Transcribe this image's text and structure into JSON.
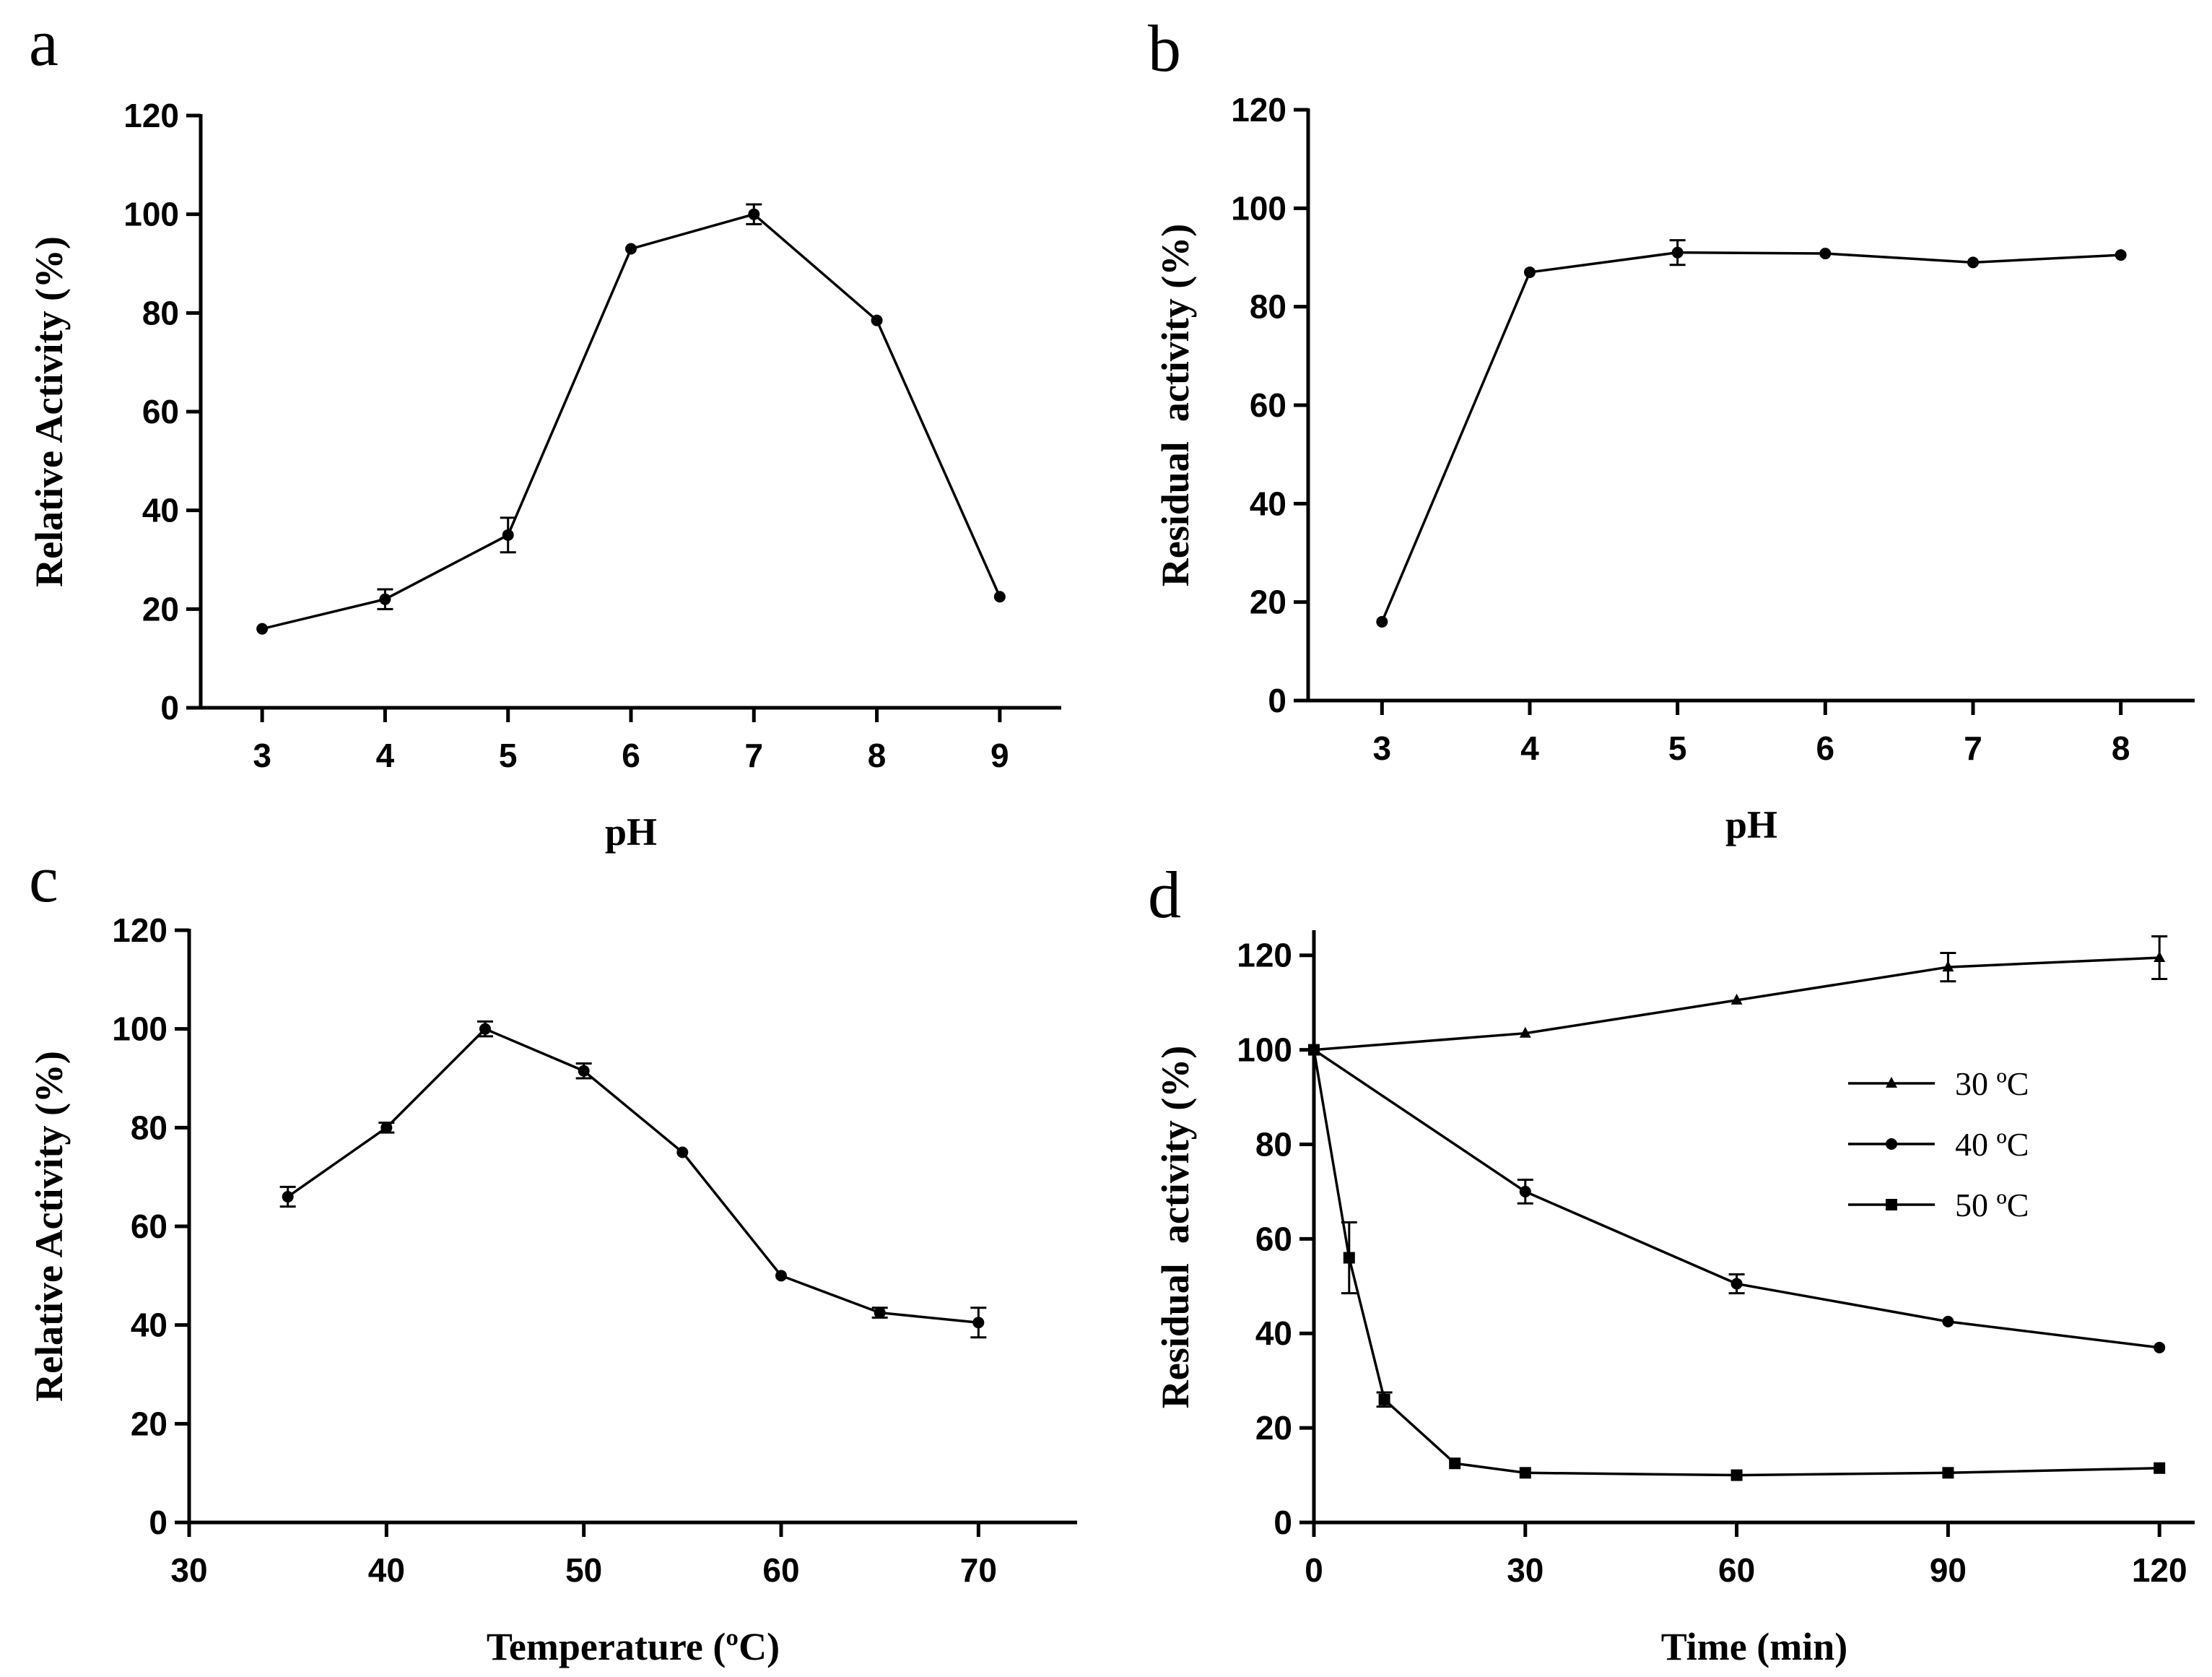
{
  "chart_data": [
    {
      "panel": "a",
      "type": "line",
      "xlabel": "pH",
      "ylabel": "Relative Activity (%)",
      "xlim": [
        2.5,
        9.5
      ],
      "ylim": [
        0,
        120
      ],
      "xticks": [
        3,
        4,
        5,
        6,
        7,
        8,
        9
      ],
      "yticks": [
        0,
        20,
        40,
        60,
        80,
        100,
        120
      ],
      "series": [
        {
          "name": "",
          "marker": "circle",
          "x": [
            3,
            4,
            5,
            6,
            7,
            8,
            9
          ],
          "values": [
            16,
            22,
            35,
            93,
            100,
            78.5,
            22.5
          ],
          "errors": [
            0,
            2,
            3.5,
            0,
            2,
            0,
            0
          ]
        }
      ]
    },
    {
      "panel": "b",
      "type": "line",
      "xlabel": "pH",
      "ylabel": "Residual  activity (%)",
      "xlim": [
        2.5,
        8.5
      ],
      "ylim": [
        0,
        120
      ],
      "xticks": [
        3,
        4,
        5,
        6,
        7,
        8
      ],
      "yticks": [
        0,
        20,
        40,
        60,
        80,
        100,
        120
      ],
      "series": [
        {
          "name": "",
          "marker": "circle",
          "x": [
            3,
            4,
            5,
            6,
            7,
            8
          ],
          "values": [
            16,
            87,
            91,
            90.8,
            89,
            90.5
          ],
          "errors": [
            0,
            0,
            2.5,
            0,
            0,
            0
          ]
        }
      ]
    },
    {
      "panel": "c",
      "type": "line",
      "xlabel": "Temperature (ºC)",
      "ylabel": "Relative Activity (%)",
      "xlim": [
        30,
        75
      ],
      "ylim": [
        0,
        120
      ],
      "xticks": [
        30,
        40,
        50,
        60,
        70
      ],
      "yticks": [
        0,
        20,
        40,
        60,
        80,
        100,
        120
      ],
      "series": [
        {
          "name": "",
          "marker": "circle",
          "x": [
            35,
            40,
            45,
            50,
            55,
            60,
            65,
            70
          ],
          "values": [
            66,
            80,
            100,
            91.5,
            75,
            50,
            42.5,
            40.5
          ],
          "errors": [
            2,
            1,
            1.5,
            1.5,
            0,
            0,
            1,
            3
          ]
        }
      ]
    },
    {
      "panel": "d",
      "type": "line",
      "xlabel": "Time (min)",
      "ylabel": "Residual  activity (%)",
      "xlim": [
        0,
        125
      ],
      "ylim": [
        0,
        125
      ],
      "xticks": [
        0,
        30,
        60,
        90,
        120
      ],
      "yticks": [
        0,
        20,
        40,
        60,
        80,
        100,
        120
      ],
      "legend": "right",
      "series": [
        {
          "name": "30 ºC",
          "marker": "triangle",
          "x": [
            0,
            30,
            60,
            90,
            120
          ],
          "values": [
            100,
            103.5,
            110.5,
            117.5,
            119.5
          ],
          "errors": [
            0,
            0,
            0,
            3,
            4.5
          ]
        },
        {
          "name": "40 ºC",
          "marker": "circle",
          "x": [
            0,
            30,
            60,
            90,
            120
          ],
          "values": [
            100,
            70,
            50.5,
            42.5,
            37
          ],
          "errors": [
            0,
            2.5,
            2,
            0,
            0
          ]
        },
        {
          "name": "50 ºC",
          "marker": "square",
          "x": [
            0,
            5,
            10,
            20,
            30,
            60,
            90,
            120
          ],
          "values": [
            100,
            56,
            26,
            12.5,
            10.5,
            10,
            10.5,
            11.5
          ],
          "errors": [
            0,
            7.5,
            1.5,
            0,
            0,
            0,
            0,
            0
          ]
        }
      ]
    }
  ]
}
